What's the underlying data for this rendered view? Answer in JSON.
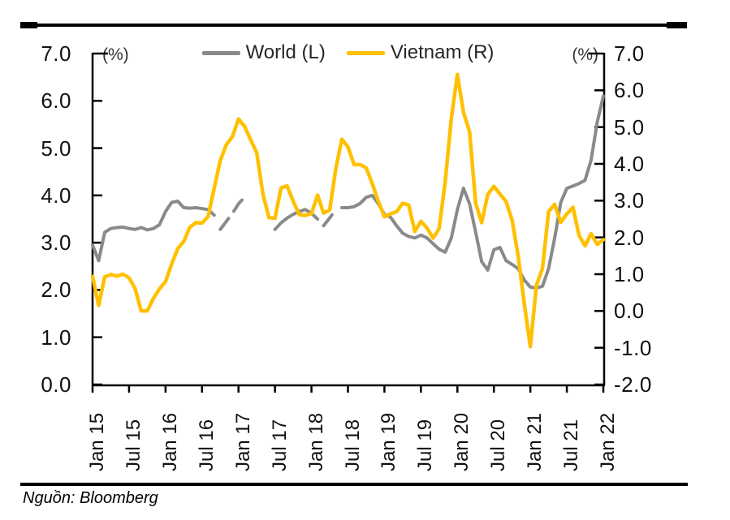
{
  "page": {
    "source_note": "Nguồn: Bloomberg"
  },
  "chart_data": {
    "type": "line",
    "title": "",
    "unit_labels": {
      "left": "(%)",
      "right": "(%)"
    },
    "legend": [
      {
        "label": "World (L)",
        "color": "#8A8A8A"
      },
      {
        "label": "Vietnam (R)",
        "color": "#FFC000"
      }
    ],
    "x_axis": {
      "months_total": 84,
      "tick_every_months": 6,
      "tick_labels": [
        "Jan 15",
        "Jul 15",
        "Jan 16",
        "Jul 16",
        "Jan 17",
        "Jul 17",
        "Jan 18",
        "Jul 18",
        "Jan 19",
        "Jul 19",
        "Jan 20",
        "Jul 20",
        "Jan 21",
        "Jul 21",
        "Jan 22"
      ]
    },
    "left_axis": {
      "min": 0,
      "max": 7,
      "step": 1,
      "tick_labels": [
        "7.0",
        "6.0",
        "5.0",
        "4.0",
        "3.0",
        "2.0",
        "1.0",
        "0.0"
      ]
    },
    "right_axis": {
      "min": -2,
      "max": 7,
      "step": 1,
      "tick_labels": [
        "7.0",
        "6.0",
        "5.0",
        "4.0",
        "3.0",
        "2.0",
        "1.0",
        "0.0",
        "-1.0",
        "-2.0"
      ]
    },
    "series": [
      {
        "id": "world",
        "name": "World (L)",
        "axis": "left",
        "color": "#8A8A8A",
        "stroke_width": 4,
        "segments": [
          {
            "style": "solid",
            "start_month": 0,
            "values": [
              2.95,
              2.62,
              3.22,
              3.3,
              3.32,
              3.33,
              3.3,
              3.28,
              3.32,
              3.27,
              3.3,
              3.38,
              3.66,
              3.85,
              3.88,
              3.74,
              3.73,
              3.74,
              3.72,
              3.7,
              3.58
            ]
          },
          {
            "style": "dashed",
            "start_month": 21,
            "values": [
              3.28,
              3.45,
              3.62,
              3.82,
              3.96
            ]
          },
          {
            "style": "solid",
            "start_month": 30,
            "values": [
              3.28,
              3.42,
              3.52,
              3.6,
              3.66,
              3.7,
              3.62,
              3.5
            ]
          },
          {
            "style": "dashed",
            "start_month": 38,
            "values": [
              3.36,
              3.52,
              3.7
            ]
          },
          {
            "style": "solid",
            "start_month": 41,
            "values": [
              3.74,
              3.74,
              3.76,
              3.83,
              3.96,
              4.0,
              3.82,
              3.6,
              3.54,
              3.36,
              3.2,
              3.13,
              3.1,
              3.16,
              3.1,
              2.98,
              2.86,
              2.8,
              3.1,
              3.7,
              4.15,
              3.82,
              3.22,
              2.6,
              2.42,
              2.85,
              2.9,
              2.62,
              2.54,
              2.45,
              2.21,
              2.06,
              2.04,
              2.08,
              2.45,
              3.1,
              3.85,
              4.15,
              4.2,
              4.25,
              4.32,
              4.75,
              5.55,
              6.1
            ]
          }
        ]
      },
      {
        "id": "vietnam",
        "name": "Vietnam (R)",
        "axis": "right",
        "color": "#FFC000",
        "stroke_width": 4.5,
        "segments": [
          {
            "style": "solid",
            "start_month": 0,
            "values": [
              0.94,
              0.15,
              0.93,
              0.99,
              0.95,
              1.0,
              0.9,
              0.61,
              0.0,
              0.0,
              0.34,
              0.6,
              0.8,
              1.27,
              1.69,
              1.89,
              2.28,
              2.4,
              2.39,
              2.57,
              3.34,
              4.09,
              4.52,
              4.74,
              5.22,
              5.02,
              4.65,
              4.3,
              3.19,
              2.54,
              2.52,
              3.35,
              3.4,
              2.98,
              2.62,
              2.6,
              2.65,
              3.15,
              2.66,
              2.75,
              3.86,
              4.67,
              4.46,
              3.98,
              3.98,
              3.89,
              3.46,
              2.98,
              2.56,
              2.64,
              2.7,
              2.93,
              2.88,
              2.16,
              2.44,
              2.26,
              1.98,
              2.24,
              3.52,
              5.23,
              6.43,
              5.4,
              4.87,
              2.93,
              2.4,
              3.17,
              3.39,
              3.18,
              2.98,
              2.47,
              1.48,
              0.19,
              -0.97,
              0.7,
              1.16,
              2.7,
              2.9,
              2.41,
              2.64,
              2.82,
              2.06,
              1.77,
              2.1,
              1.81,
              1.94
            ]
          }
        ]
      }
    ]
  }
}
